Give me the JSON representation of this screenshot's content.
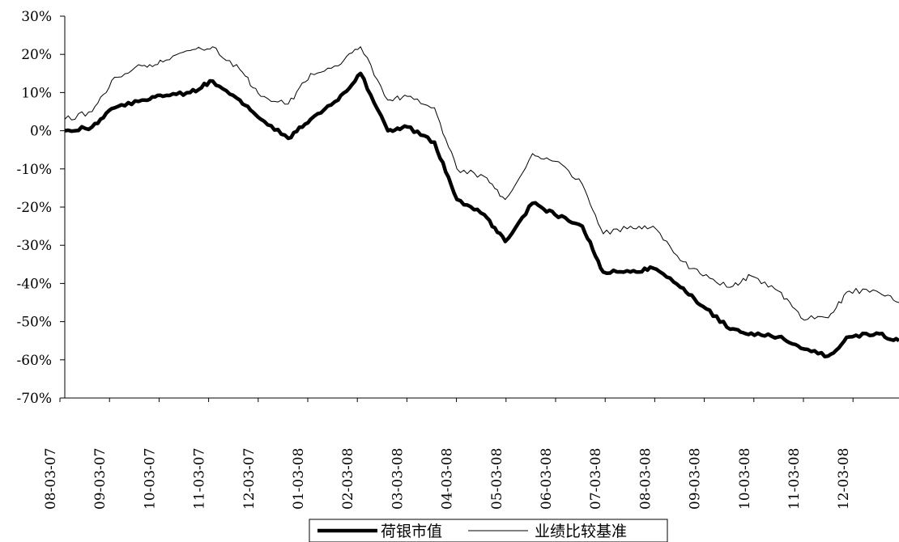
{
  "chart_data": {
    "type": "line",
    "title": "",
    "xlabel": "",
    "ylabel": "",
    "ylim": [
      -0.7,
      0.3
    ],
    "grid": false,
    "legend_position": "bottom-center",
    "y_ticks": [
      "30%",
      "20%",
      "10%",
      "0%",
      "-10%",
      "-20%",
      "-30%",
      "-40%",
      "-50%",
      "-60%",
      "-70%"
    ],
    "x_ticks": [
      "08-03-07",
      "09-03-07",
      "10-03-07",
      "11-03-07",
      "12-03-07",
      "01-03-08",
      "02-03-08",
      "03-03-08",
      "04-03-08",
      "05-03-08",
      "06-03-08",
      "07-03-08",
      "08-03-08",
      "09-03-08",
      "10-03-08",
      "11-03-08",
      "12-03-08"
    ],
    "x": [
      "2007-08-03",
      "2007-08-20",
      "2007-09-03",
      "2007-09-20",
      "2007-10-03",
      "2007-10-20",
      "2007-11-03",
      "2007-11-20",
      "2007-12-03",
      "2007-12-20",
      "2008-01-03",
      "2008-01-20",
      "2008-02-03",
      "2008-02-20",
      "2008-03-03",
      "2008-03-20",
      "2008-04-03",
      "2008-04-20",
      "2008-05-03",
      "2008-05-20",
      "2008-06-03",
      "2008-06-20",
      "2008-07-03",
      "2008-07-20",
      "2008-08-03",
      "2008-08-20",
      "2008-09-03",
      "2008-09-20",
      "2008-10-03",
      "2008-10-20",
      "2008-11-03",
      "2008-11-20",
      "2008-12-03",
      "2008-12-20",
      "2009-01-03"
    ],
    "series": [
      {
        "name": "荷银市值",
        "values": [
          0.0,
          0.01,
          0.06,
          0.08,
          0.09,
          0.1,
          0.13,
          0.08,
          0.03,
          -0.02,
          0.03,
          0.08,
          0.15,
          0.0,
          0.01,
          -0.03,
          -0.18,
          -0.22,
          -0.29,
          -0.19,
          -0.22,
          -0.25,
          -0.37,
          -0.37,
          -0.36,
          -0.41,
          -0.46,
          -0.52,
          -0.53,
          -0.54,
          -0.57,
          -0.59,
          -0.54,
          -0.53,
          -0.55
        ],
        "color": "#000000",
        "line_style": "thick"
      },
      {
        "name": "业绩比较基准",
        "values": [
          0.03,
          0.05,
          0.14,
          0.17,
          0.18,
          0.21,
          0.22,
          0.16,
          0.09,
          0.07,
          0.15,
          0.17,
          0.22,
          0.08,
          0.09,
          0.06,
          -0.1,
          -0.12,
          -0.18,
          -0.06,
          -0.08,
          -0.14,
          -0.27,
          -0.25,
          -0.25,
          -0.34,
          -0.38,
          -0.41,
          -0.38,
          -0.42,
          -0.49,
          -0.49,
          -0.42,
          -0.42,
          -0.45
        ],
        "color": "#000000",
        "line_style": "thin"
      }
    ]
  }
}
